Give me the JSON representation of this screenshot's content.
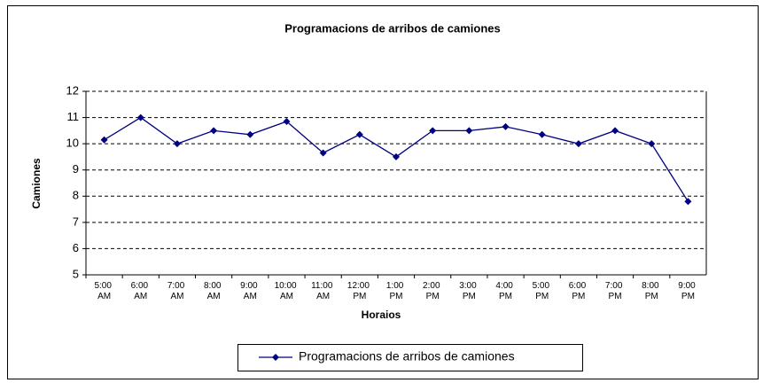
{
  "chart_data": {
    "type": "line",
    "title": "Programacions de arribos de camiones",
    "x_label": "Horaios",
    "y_label": "Camiones",
    "categories": [
      "5:00 AM",
      "6:00 AM",
      "7:00 AM",
      "8:00 AM",
      "9:00 AM",
      "10:00 AM",
      "11:00 AM",
      "12:00 PM",
      "1:00 PM",
      "2:00 PM",
      "3:00 PM",
      "4:00 PM",
      "5:00 PM",
      "6:00 PM",
      "7:00 PM",
      "8:00 PM",
      "9:00 PM"
    ],
    "series": [
      {
        "name": "Programacions de arribos de camiones",
        "color": "#000080",
        "values": [
          10.15,
          11,
          10,
          10.5,
          10.35,
          10.85,
          9.65,
          10.35,
          9.5,
          10.5,
          10.5,
          10.65,
          10.35,
          10,
          10.5,
          10,
          7.8
        ]
      }
    ],
    "ylim": [
      5,
      12
    ],
    "yticks": [
      5,
      6,
      7,
      8,
      9,
      10,
      11,
      12
    ],
    "grid": true,
    "legend": "bottom"
  }
}
